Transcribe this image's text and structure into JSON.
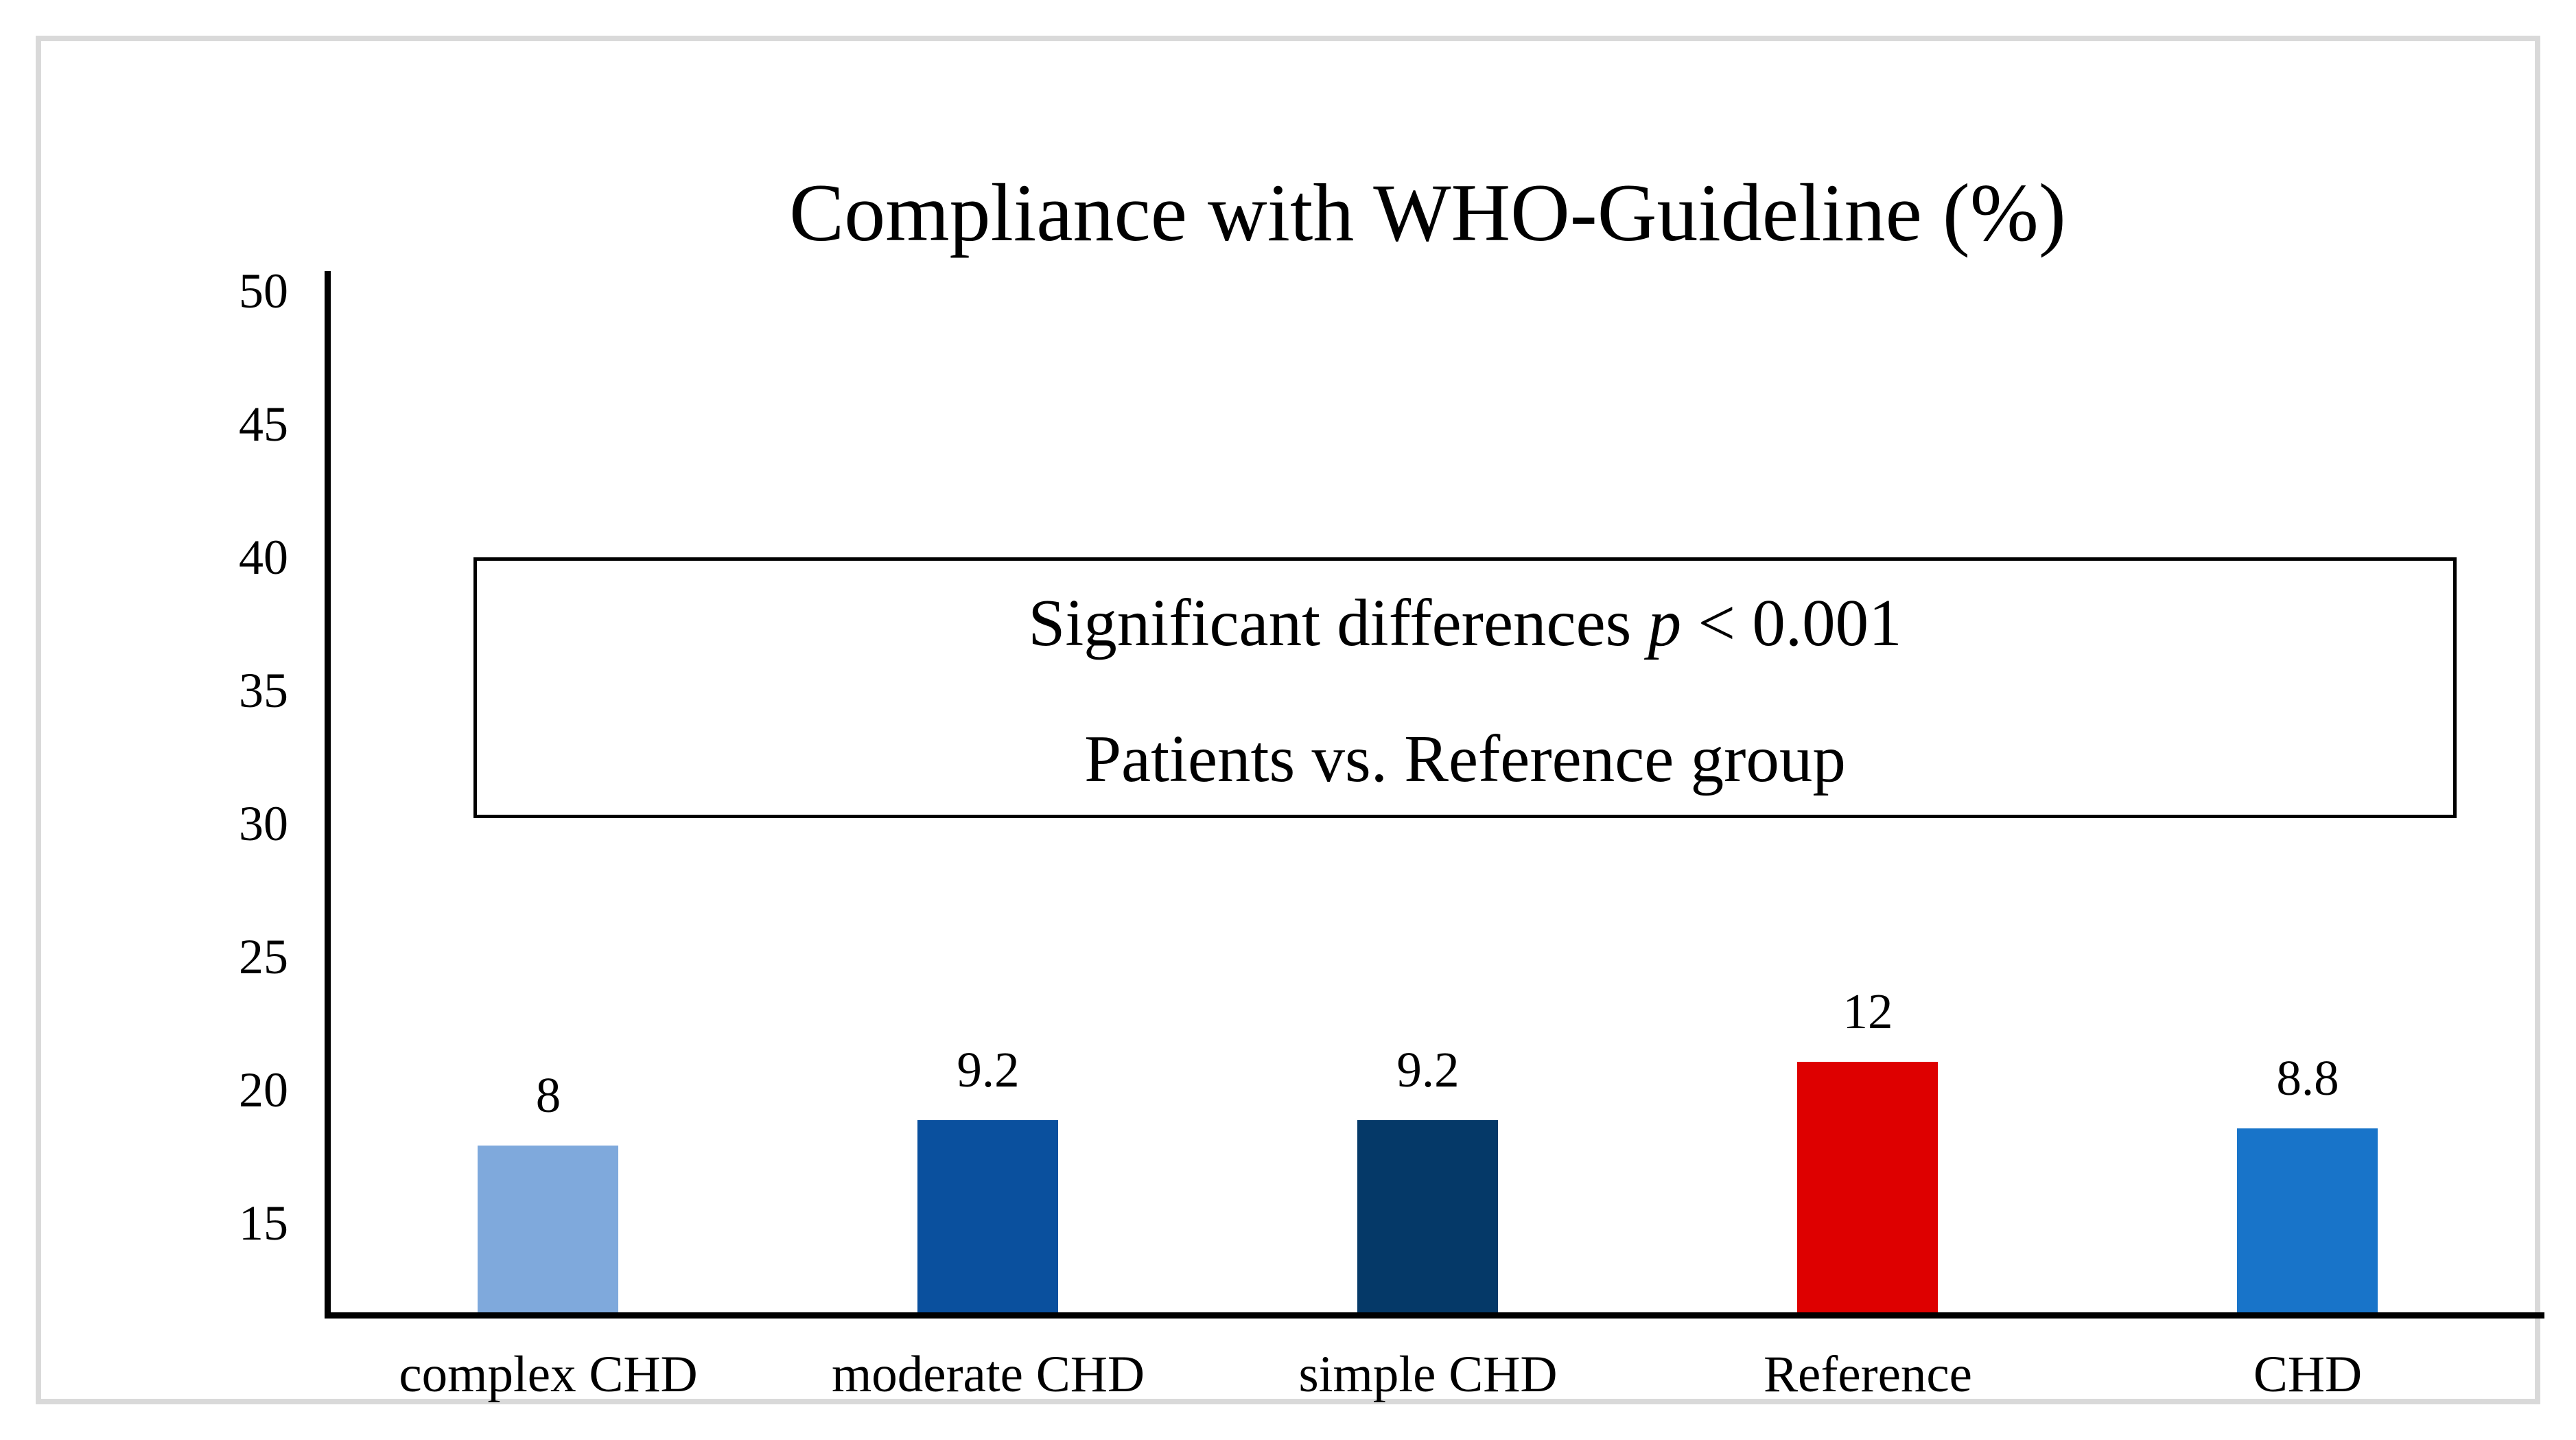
{
  "frame": {
    "border_color": "#d9d9d9"
  },
  "chart_data": {
    "type": "bar",
    "title": "Compliance with WHO-Guideline (%)",
    "categories": [
      "complex CHD",
      "moderate CHD",
      "simple CHD",
      "Reference",
      "CHD"
    ],
    "values": [
      8,
      9.2,
      9.2,
      12,
      8.8
    ],
    "bar_labels": [
      "8",
      "9.2",
      "9.2",
      "12",
      "8.8"
    ],
    "bar_colors": [
      "#7FA9DC",
      "#0A509E",
      "#053968",
      "#DE0000",
      "#1874C9"
    ],
    "y_ticks": [
      50,
      45,
      40,
      35,
      30,
      25,
      20,
      15
    ],
    "y_axis": {
      "tick_min": 15,
      "tick_max": 50,
      "tick_step": 5,
      "note": "bars rise from an unlabeled baseline below the 15 tick; bar heights proportional to labeled values"
    },
    "grid": false,
    "legend": false,
    "text_color": "#000000",
    "axis_color": "#000000",
    "annotation": {
      "line1_pre": "Significant differences ",
      "line1_italic": "p",
      "line1_post": " < 0.001",
      "line1_full": "Significant differences p < 0.001",
      "line2": "Patients vs. Reference group"
    }
  }
}
